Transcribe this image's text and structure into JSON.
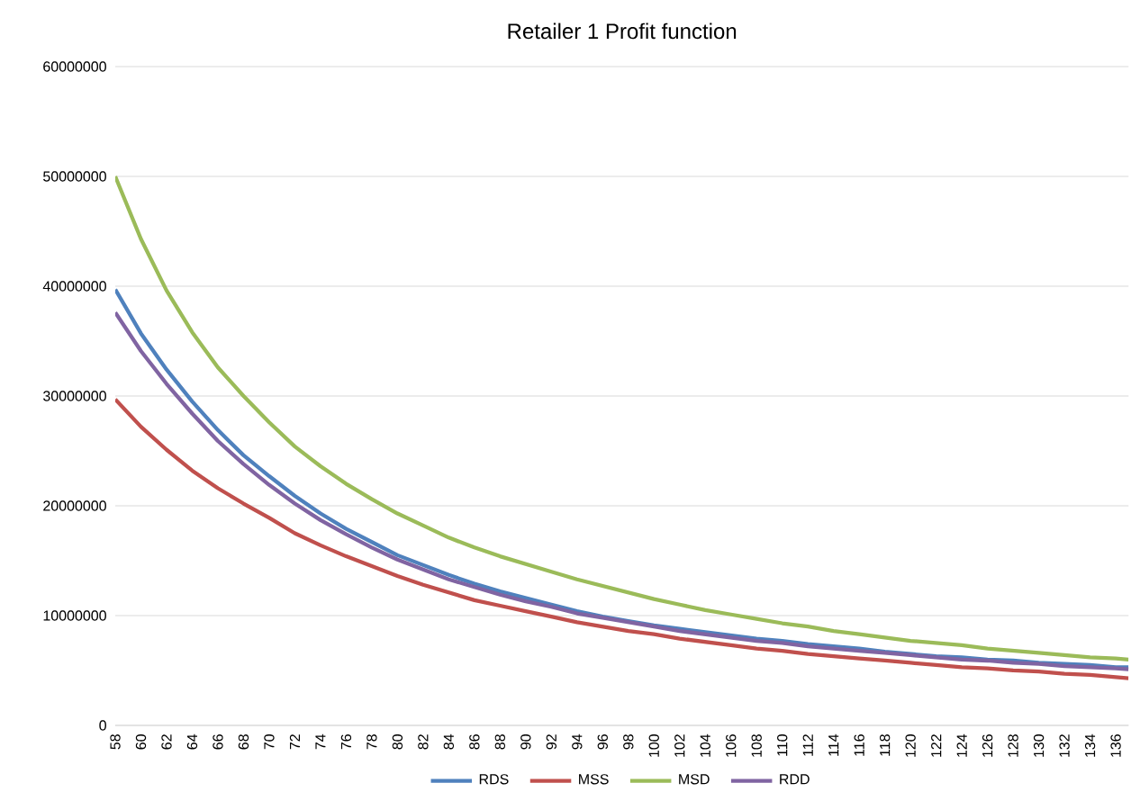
{
  "chart_data": {
    "type": "line",
    "title": "Retailer 1 Profit function",
    "x": [
      58,
      60,
      62,
      64,
      66,
      68,
      70,
      72,
      74,
      76,
      78,
      80,
      82,
      84,
      86,
      88,
      90,
      92,
      94,
      96,
      98,
      100,
      102,
      104,
      106,
      108,
      110,
      112,
      114,
      116,
      118,
      120,
      122,
      124,
      126,
      128,
      130,
      132,
      134,
      136,
      137
    ],
    "xlim": [
      58,
      137
    ],
    "xticks": [
      58,
      60,
      62,
      64,
      66,
      68,
      70,
      72,
      74,
      76,
      78,
      80,
      82,
      84,
      86,
      88,
      90,
      92,
      94,
      96,
      98,
      100,
      102,
      104,
      106,
      108,
      110,
      112,
      114,
      116,
      118,
      120,
      122,
      124,
      126,
      128,
      130,
      132,
      134,
      136
    ],
    "ylim": [
      0,
      60000000
    ],
    "yticks": [
      0,
      10000000,
      20000000,
      30000000,
      40000000,
      50000000,
      60000000
    ],
    "grid": "y",
    "legend": "bottom",
    "marker": "none",
    "line_style": "solid",
    "series": [
      {
        "name": "RDS",
        "color": "#4f81bd",
        "values": [
          39700000,
          35700000,
          32400000,
          29500000,
          26900000,
          24600000,
          22700000,
          20900000,
          19300000,
          17900000,
          16700000,
          15500000,
          14600000,
          13700000,
          12900000,
          12200000,
          11600000,
          11000000,
          10400000,
          9900000,
          9500000,
          9100000,
          8800000,
          8500000,
          8200000,
          7900000,
          7700000,
          7400000,
          7200000,
          7000000,
          6700000,
          6500000,
          6300000,
          6200000,
          6000000,
          5900000,
          5700000,
          5600000,
          5500000,
          5300000,
          5300000
        ]
      },
      {
        "name": "MSS",
        "color": "#c0504d",
        "values": [
          29700000,
          27200000,
          25100000,
          23200000,
          21600000,
          20200000,
          18900000,
          17500000,
          16400000,
          15400000,
          14500000,
          13600000,
          12800000,
          12100000,
          11400000,
          10900000,
          10400000,
          9900000,
          9400000,
          9000000,
          8600000,
          8300000,
          7900000,
          7600000,
          7300000,
          7000000,
          6800000,
          6500000,
          6300000,
          6100000,
          5900000,
          5700000,
          5500000,
          5300000,
          5200000,
          5000000,
          4900000,
          4700000,
          4600000,
          4400000,
          4300000
        ]
      },
      {
        "name": "MSD",
        "color": "#9bbb59",
        "values": [
          50000000,
          44300000,
          39600000,
          35800000,
          32600000,
          30000000,
          27600000,
          25400000,
          23600000,
          22000000,
          20600000,
          19300000,
          18200000,
          17100000,
          16200000,
          15400000,
          14700000,
          14000000,
          13300000,
          12700000,
          12100000,
          11500000,
          11000000,
          10500000,
          10100000,
          9700000,
          9300000,
          9000000,
          8600000,
          8300000,
          8000000,
          7700000,
          7500000,
          7300000,
          7000000,
          6800000,
          6600000,
          6400000,
          6200000,
          6100000,
          6000000
        ]
      },
      {
        "name": "RDD",
        "color": "#8064a2",
        "values": [
          37600000,
          34100000,
          31100000,
          28400000,
          25900000,
          23800000,
          21900000,
          20200000,
          18700000,
          17400000,
          16200000,
          15100000,
          14200000,
          13300000,
          12600000,
          11900000,
          11300000,
          10800000,
          10200000,
          9800000,
          9400000,
          9000000,
          8600000,
          8300000,
          8000000,
          7700000,
          7500000,
          7200000,
          7000000,
          6800000,
          6600000,
          6400000,
          6200000,
          6000000,
          5900000,
          5700000,
          5600000,
          5400000,
          5300000,
          5200000,
          5100000
        ]
      }
    ]
  }
}
